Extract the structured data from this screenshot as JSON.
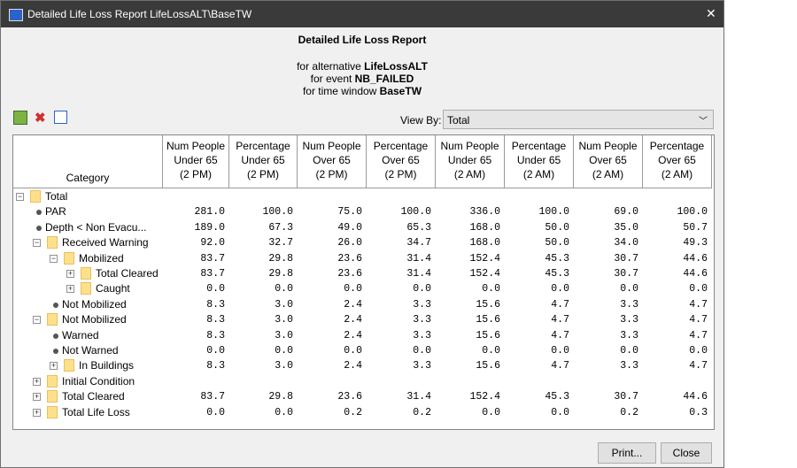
{
  "window": {
    "title": "Detailed Life Loss Report LifeLossALT\\BaseTW",
    "close": "✕"
  },
  "report": {
    "heading": "Detailed Life Loss Report",
    "lines": [
      {
        "prefix": "for alternative ",
        "value": "LifeLossALT"
      },
      {
        "prefix": "for event ",
        "value": "NB_FAILED"
      },
      {
        "prefix": "for time window ",
        "value": "BaseTW"
      }
    ]
  },
  "toolbar": {
    "view_by_label": "View By:",
    "view_by_value": "Total"
  },
  "table": {
    "category_header": "Category",
    "columns": [
      [
        "Num People",
        "Under 65",
        "(2 PM)"
      ],
      [
        "Percentage",
        "Under 65",
        "(2 PM)"
      ],
      [
        "Num People",
        "Over 65",
        "(2 PM)"
      ],
      [
        "Percentage",
        "Over 65",
        "(2 PM)"
      ],
      [
        "Num People",
        "Under 65",
        "(2 AM)"
      ],
      [
        "Percentage",
        "Under 65",
        "(2 AM)"
      ],
      [
        "Num People",
        "Over 65",
        "(2 AM)"
      ],
      [
        "Percentage",
        "Over 65",
        "(2 AM)"
      ]
    ],
    "rows": [
      {
        "label": "Total"
      },
      {
        "label": "PAR",
        "values": [
          "281.0",
          "100.0",
          "75.0",
          "100.0",
          "336.0",
          "100.0",
          "69.0",
          "100.0"
        ]
      },
      {
        "label": "Depth < Non Evacu...",
        "values": [
          "189.0",
          "67.3",
          "49.0",
          "65.3",
          "168.0",
          "50.0",
          "35.0",
          "50.7"
        ]
      },
      {
        "label": "Received Warning",
        "values": [
          "92.0",
          "32.7",
          "26.0",
          "34.7",
          "168.0",
          "50.0",
          "34.0",
          "49.3"
        ]
      },
      {
        "label": "Mobilized",
        "values": [
          "83.7",
          "29.8",
          "23.6",
          "31.4",
          "152.4",
          "45.3",
          "30.7",
          "44.6"
        ]
      },
      {
        "label": "Total Cleared",
        "values": [
          "83.7",
          "29.8",
          "23.6",
          "31.4",
          "152.4",
          "45.3",
          "30.7",
          "44.6"
        ]
      },
      {
        "label": "Caught",
        "values": [
          "0.0",
          "0.0",
          "0.0",
          "0.0",
          "0.0",
          "0.0",
          "0.0",
          "0.0"
        ]
      },
      {
        "label": "Not Mobilized",
        "values": [
          "8.3",
          "3.0",
          "2.4",
          "3.3",
          "15.6",
          "4.7",
          "3.3",
          "4.7"
        ]
      },
      {
        "label": "Not Mobilized",
        "values": [
          "8.3",
          "3.0",
          "2.4",
          "3.3",
          "15.6",
          "4.7",
          "3.3",
          "4.7"
        ]
      },
      {
        "label": "Warned",
        "values": [
          "8.3",
          "3.0",
          "2.4",
          "3.3",
          "15.6",
          "4.7",
          "3.3",
          "4.7"
        ]
      },
      {
        "label": "Not Warned",
        "values": [
          "0.0",
          "0.0",
          "0.0",
          "0.0",
          "0.0",
          "0.0",
          "0.0",
          "0.0"
        ]
      },
      {
        "label": "In Buildings",
        "values": [
          "8.3",
          "3.0",
          "2.4",
          "3.3",
          "15.6",
          "4.7",
          "3.3",
          "4.7"
        ]
      },
      {
        "label": "Initial Condition"
      },
      {
        "label": "Total Cleared",
        "values": [
          "83.7",
          "29.8",
          "23.6",
          "31.4",
          "152.4",
          "45.3",
          "30.7",
          "44.6"
        ]
      },
      {
        "label": "Total Life Loss",
        "values": [
          "0.0",
          "0.0",
          "0.2",
          "0.2",
          "0.0",
          "0.0",
          "0.2",
          "0.3"
        ]
      }
    ]
  },
  "buttons": [
    "Print...",
    "Close"
  ]
}
